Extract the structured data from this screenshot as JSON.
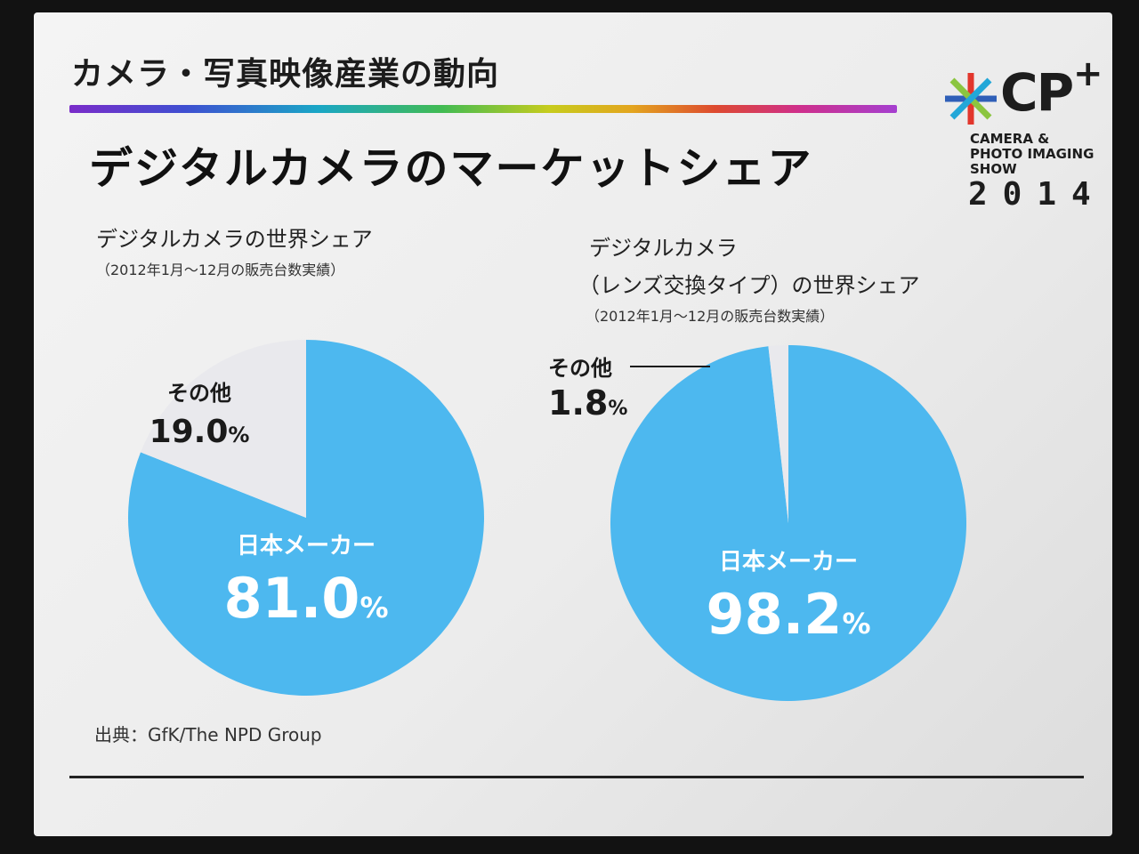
{
  "header": {
    "title": "カメラ・写真映像産業の動向"
  },
  "slide": {
    "title": "デジタルカメラのマーケットシェア",
    "source": "出典：GfK/The NPD Group"
  },
  "logo": {
    "cp": "CP",
    "plus": "+",
    "line1": "CAMERA &",
    "line2": "PHOTO IMAGING",
    "line3": "SHOW",
    "year": "2014"
  },
  "colors": {
    "japan": "#4db8ef",
    "other": "#e9e9ed",
    "label_light": "#ffffff",
    "label_dark": "#1a1a1a"
  },
  "chart_data": [
    {
      "type": "pie",
      "title_lines": [
        "デジタルカメラの世界シェア"
      ],
      "subtitle": "（2012年1月〜12月の販売台数実績）",
      "slices": [
        {
          "label": "日本メーカー",
          "value": 81.0,
          "display": "81.0",
          "unit": "%"
        },
        {
          "label": "その他",
          "value": 19.0,
          "display": "19.0",
          "unit": "%"
        }
      ]
    },
    {
      "type": "pie",
      "title_lines": [
        "デジタルカメラ",
        "（レンズ交換タイプ）の世界シェア"
      ],
      "subtitle": "（2012年1月〜12月の販売台数実績）",
      "slices": [
        {
          "label": "日本メーカー",
          "value": 98.2,
          "display": "98.2",
          "unit": "%"
        },
        {
          "label": "その他",
          "value": 1.8,
          "display": "1.8",
          "unit": "%"
        }
      ]
    }
  ]
}
